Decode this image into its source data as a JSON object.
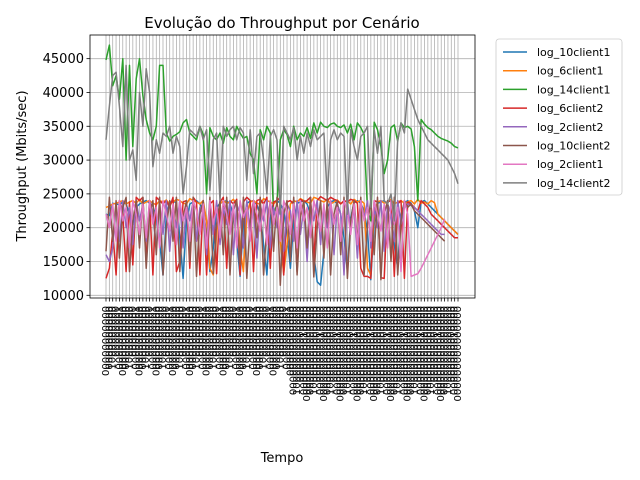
{
  "chart_data": {
    "type": "line",
    "title": "Evolução do Throughput por Cenário",
    "xlabel": "Tempo",
    "ylabel": "Throughput (Mbits/sec)",
    "ylim": [
      9600,
      48500
    ],
    "yticks": [
      10000,
      15000,
      20000,
      25000,
      30000,
      35000,
      40000,
      45000
    ],
    "grid": true,
    "legend_position": "outside-right",
    "x_tick_labels_unreadable": true,
    "num_x_ticks": 106,
    "series": [
      {
        "name": "log_10client1",
        "color": "#1f77b4",
        "values": [
          22000,
          21800,
          23600,
          23500,
          23400,
          23800,
          23500,
          22000,
          20500,
          23000,
          23500,
          23800,
          24000,
          23600,
          23200,
          21500,
          18000,
          13000,
          21800,
          23700,
          24000,
          23600,
          18500,
          12500,
          21000,
          23500,
          23800,
          24000,
          23500,
          22500,
          19000,
          13500,
          17000,
          23000,
          23600,
          23800,
          24000,
          23500,
          22000,
          18000,
          12800,
          20500,
          23600,
          23900,
          24000,
          23400,
          22000,
          17500,
          13000,
          21500,
          23800,
          24000,
          23600,
          22500,
          19000,
          14000,
          21000,
          23600,
          23800,
          24000,
          23500,
          22000,
          16000,
          12000,
          11500,
          16500,
          23000,
          23800,
          24000,
          23500,
          22000,
          18500,
          13500,
          21500,
          23700,
          24000,
          23600,
          22500,
          19500,
          12300,
          20500,
          23600,
          23800,
          24000,
          23500,
          22000,
          17500,
          14000,
          22000,
          23700,
          24000,
          23600,
          22500,
          20000,
          23800,
          24000,
          23500,
          23000,
          22500,
          22000,
          21500,
          21000,
          20500,
          20000,
          19500,
          19000
        ]
      },
      {
        "name": "log_6client1",
        "color": "#ff7f0e",
        "values": [
          23000,
          23200,
          23500,
          23600,
          23800,
          24000,
          23500,
          23800,
          24000,
          23600,
          24200,
          23500,
          23800,
          24000,
          23600,
          23400,
          24000,
          23800,
          24100,
          23500,
          23800,
          24200,
          24000,
          23600,
          23500,
          24300,
          24000,
          23800,
          23500,
          24000,
          21000,
          14000,
          13000,
          19000,
          23500,
          24000,
          23600,
          23800,
          24200,
          23500,
          17000,
          13500,
          22000,
          23800,
          24000,
          23600,
          23500,
          24300,
          24000,
          23800,
          23500,
          24000,
          18000,
          13200,
          17500,
          23500,
          24000,
          23800,
          24300,
          24000,
          23800,
          23600,
          24500,
          24300,
          24000,
          23800,
          24200,
          23500,
          23800,
          24100,
          23600,
          23800,
          24000,
          23500,
          24200,
          23800,
          24000,
          23600,
          14000,
          13000,
          22000,
          23800,
          24000,
          23600,
          23800,
          24200,
          23500,
          23800,
          24000,
          23600,
          23800,
          24000,
          23500,
          24200,
          23600,
          23800,
          23500,
          24000,
          23700,
          22000,
          21500,
          21000,
          20500,
          20000,
          19500,
          19000
        ]
      },
      {
        "name": "log_14client1",
        "color": "#2ca02c",
        "values": [
          44800,
          47000,
          41000,
          42500,
          39000,
          45000,
          30000,
          44000,
          32000,
          42000,
          45000,
          39500,
          36000,
          34000,
          33000,
          35000,
          44000,
          44000,
          34000,
          32800,
          33500,
          33800,
          34200,
          35500,
          36000,
          34000,
          33500,
          33000,
          35000,
          33800,
          25000,
          34800,
          33500,
          33000,
          34000,
          32500,
          34800,
          33500,
          33000,
          35000,
          34000,
          33200,
          33500,
          31000,
          30000,
          25000,
          34500,
          33000,
          35000,
          34000,
          22000,
          23500,
          33000,
          34500,
          33800,
          32000,
          35000,
          33000,
          34000,
          33500,
          34800,
          33200,
          35500,
          34000,
          35600,
          35000,
          34800,
          35300,
          35500,
          35000,
          34800,
          35200,
          34000,
          35300,
          33000,
          35500,
          34800,
          33800,
          22500,
          21000,
          35600,
          34500,
          32000,
          28000,
          30000,
          34800,
          35200,
          32800,
          35500,
          34800,
          35000,
          34600,
          32000,
          24000,
          36000,
          35300,
          34800,
          34500,
          34000,
          33500,
          33200,
          33000,
          32800,
          32500,
          32000,
          31800
        ]
      },
      {
        "name": "log_6client2",
        "color": "#d62728",
        "values": [
          12500,
          14000,
          19500,
          13000,
          24000,
          22000,
          13500,
          23800,
          14500,
          24500,
          24000,
          24500,
          15000,
          24000,
          13000,
          24500,
          24000,
          23500,
          24000,
          23000,
          24500,
          13500,
          15000,
          23800,
          24000,
          14000,
          24500,
          23800,
          13000,
          24000,
          13000,
          23500,
          24000,
          13200,
          23800,
          24500,
          14000,
          24000,
          23500,
          24200,
          13000,
          23800,
          24500,
          24000,
          13500,
          24000,
          24200,
          23500,
          24500,
          14000,
          23800,
          24000,
          24500,
          13000,
          23800,
          24000,
          23500,
          13500,
          24200,
          23800,
          24000,
          24500,
          15000,
          24000,
          24600,
          24300,
          24000,
          24500,
          24200,
          24000,
          23500,
          24000,
          23800,
          24200,
          24000,
          23600,
          14000,
          12800,
          12800,
          12500,
          24000,
          23800,
          12600,
          12500,
          23800,
          24000,
          12800,
          23500,
          24000,
          12500,
          23800,
          23500,
          23000,
          22500,
          24000,
          23500,
          23000,
          22000,
          21500,
          21000,
          20500,
          20000,
          19500,
          19000,
          18500,
          18500
        ]
      },
      {
        "name": "log_2client2",
        "color": "#9467bd",
        "values": [
          16000,
          15000,
          17000,
          23500,
          18000,
          24000,
          20000,
          23000,
          17500,
          24000,
          21000,
          23500,
          18000,
          24000,
          22000,
          17000,
          23500,
          19000,
          24000,
          16500,
          23000,
          20000,
          24000,
          17000,
          23500,
          21000,
          24000,
          18000,
          23000,
          22000,
          16000,
          23500,
          19000,
          24000,
          17500,
          23000,
          20500,
          24000,
          16000,
          23500,
          22000,
          17000,
          24000,
          19500,
          23000,
          15500,
          23500,
          21000,
          24000,
          17000,
          23000,
          20000,
          24000,
          16500,
          23500,
          22500,
          18000,
          24000,
          19000,
          23000,
          15000,
          23500,
          21000,
          24000,
          17500,
          23000,
          20000,
          24000,
          16000,
          23500,
          22000,
          13000,
          24000,
          19500,
          23000,
          15500,
          23500,
          21500,
          24000,
          17000,
          23000,
          20000,
          24000,
          16500,
          23500,
          22000,
          18000,
          24000,
          20500,
          23000,
          23500,
          23300,
          23000,
          22500,
          22000,
          21500,
          21000,
          20500,
          20000,
          19500,
          19000,
          19000
        ]
      },
      {
        "name": "log_10client2",
        "color": "#8c564b",
        "values": [
          16500,
          24500,
          18000,
          24000,
          15500,
          23000,
          24500,
          13500,
          21000,
          24000,
          17000,
          24500,
          14000,
          22000,
          24000,
          16000,
          24500,
          13000,
          20000,
          24000,
          18000,
          24500,
          13500,
          21500,
          24000,
          15000,
          24500,
          12800,
          22000,
          24000,
          17500,
          24500,
          13200,
          20500,
          24000,
          16000,
          24500,
          13000,
          22500,
          24000,
          14500,
          24500,
          12500,
          21000,
          24000,
          18500,
          24500,
          13000,
          20000,
          24000,
          16500,
          24500,
          11500,
          22000,
          24000,
          15000,
          24500,
          13000,
          21500,
          24000,
          17000,
          24500,
          12700,
          20000,
          24000,
          15500,
          24500,
          13000,
          22000,
          24000,
          16000,
          24500,
          12500,
          21000,
          24000,
          18000,
          24500,
          13000,
          20500,
          24000,
          16000,
          24500,
          12300,
          22000,
          24000,
          15000,
          24500,
          13000,
          21000,
          24000,
          23000,
          23500,
          22500,
          22000,
          21500,
          21000,
          20500,
          20000,
          19500,
          19000,
          18500,
          18000
        ]
      },
      {
        "name": "log_2client1",
        "color": "#e377c2",
        "values": [
          22000,
          20000,
          23500,
          18000,
          24000,
          21000,
          23000,
          17000,
          24000,
          22000,
          19000,
          23500,
          18500,
          24000,
          20500,
          23000,
          17000,
          24000,
          22000,
          19500,
          23500,
          17500,
          24000,
          21000,
          23000,
          18000,
          24000,
          22500,
          19000,
          23500,
          17000,
          24000,
          20500,
          23000,
          18500,
          24000,
          22000,
          19000,
          23500,
          17000,
          24000,
          21500,
          23000,
          18000,
          24000,
          22000,
          19500,
          23500,
          17500,
          24000,
          20500,
          23000,
          18000,
          24000,
          22500,
          19000,
          23500,
          17000,
          24000,
          21000,
          23000,
          18500,
          24000,
          22000,
          19500,
          23500,
          17000,
          24000,
          20500,
          23000,
          18000,
          24000,
          22500,
          19000,
          23500,
          17500,
          24000,
          21000,
          23000,
          18000,
          24000,
          22000,
          19500,
          23500,
          17000,
          24000,
          20500,
          23000,
          13500,
          24000,
          22000,
          12800,
          13000,
          13200,
          14000,
          15000,
          16000,
          17000,
          18000,
          19000,
          20000,
          21300
        ]
      },
      {
        "name": "log_14client2",
        "color": "#7f7f7f",
        "values": [
          33000,
          38000,
          42500,
          43000,
          38000,
          32000,
          44000,
          30000,
          31500,
          27000,
          40000,
          35000,
          43500,
          40000,
          29000,
          33000,
          31000,
          34000,
          33500,
          35000,
          31000,
          33500,
          32000,
          25000,
          29000,
          34500,
          34000,
          33500,
          35000,
          33000,
          34500,
          25500,
          33000,
          34000,
          24000,
          35000,
          33500,
          34500,
          35000,
          33000,
          34800,
          34000,
          27000,
          34500,
          28000,
          33500,
          34000,
          30000,
          25000,
          33500,
          34500,
          33000,
          22000,
          35000,
          34000,
          33000,
          34800,
          30000,
          33500,
          31000,
          34000,
          32000,
          34500,
          33000,
          33500,
          34000,
          24500,
          33000,
          34500,
          33000,
          34000,
          33500,
          22000,
          34500,
          32000,
          30000,
          33500,
          34000,
          35000,
          23000,
          34500,
          31000,
          35000,
          24000,
          23500,
          25000,
          21000,
          33000,
          35500,
          34000,
          40500,
          39000,
          37500,
          36000,
          35000,
          34000,
          33000,
          32500,
          32000,
          31500,
          31000,
          30500,
          30000,
          29000,
          28000,
          26500
        ]
      }
    ]
  }
}
